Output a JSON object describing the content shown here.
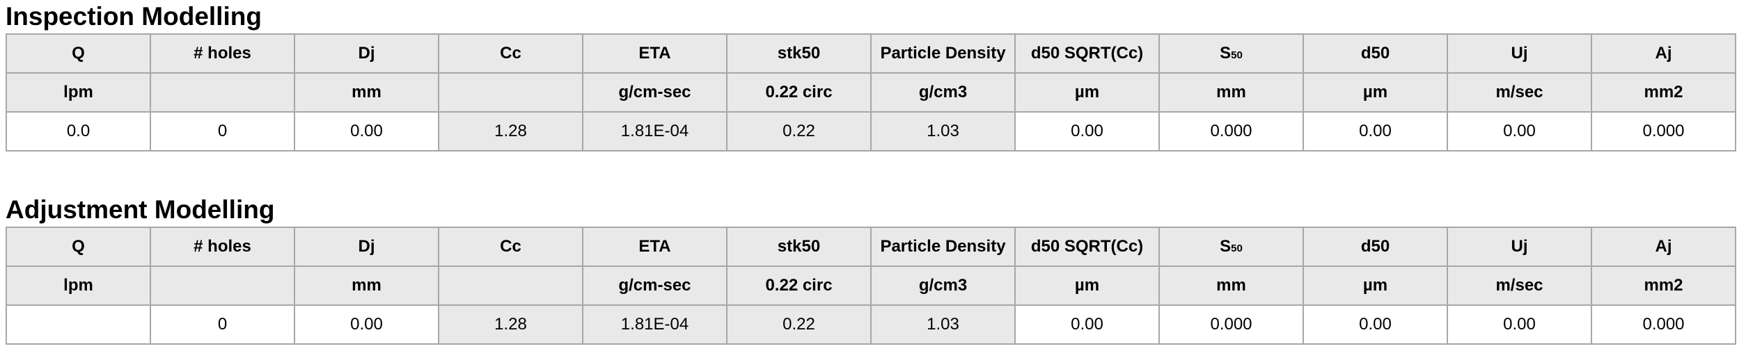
{
  "colors": {
    "header_cell_bg": "#e9e9e9",
    "shaded_value_cell_bg": "#e9e9e9",
    "white_cell_bg": "#ffffff",
    "grid_border": "#a7a7a7",
    "text": "#000000",
    "page_bg": "#ffffff"
  },
  "tables": [
    {
      "title": "Inspection Modelling",
      "columns": [
        {
          "label": "Q",
          "unit": "lpm"
        },
        {
          "label": "# holes",
          "unit": ""
        },
        {
          "label": "Dj",
          "unit": "mm"
        },
        {
          "label": "Cc",
          "unit": ""
        },
        {
          "label": "ETA",
          "unit": "g/cm-sec"
        },
        {
          "label": "stk50",
          "unit": "0.22 circ"
        },
        {
          "label": "Particle Density",
          "unit": "g/cm3"
        },
        {
          "label": "d50 SQRT(Cc)",
          "unit": "µm"
        },
        {
          "label": "S",
          "sub": "50",
          "unit": "mm"
        },
        {
          "label": "d50",
          "unit": "µm"
        },
        {
          "label": "Uj",
          "unit": "m/sec"
        },
        {
          "label": "Aj",
          "unit": "mm2"
        }
      ],
      "values": [
        "0.0",
        "0",
        "0.00",
        "1.28",
        "1.81E-04",
        "0.22",
        "1.03",
        "0.00",
        "0.000",
        "0.00",
        "0.00",
        "0.000"
      ],
      "shaded_value_columns": [
        3,
        4,
        5,
        6
      ]
    },
    {
      "title": "Adjustment Modelling",
      "columns": [
        {
          "label": "Q",
          "unit": "lpm"
        },
        {
          "label": "# holes",
          "unit": ""
        },
        {
          "label": "Dj",
          "unit": "mm"
        },
        {
          "label": "Cc",
          "unit": ""
        },
        {
          "label": "ETA",
          "unit": "g/cm-sec"
        },
        {
          "label": "stk50",
          "unit": "0.22 circ"
        },
        {
          "label": "Particle Density",
          "unit": "g/cm3"
        },
        {
          "label": "d50 SQRT(Cc)",
          "unit": "µm"
        },
        {
          "label": "S",
          "sub": "50",
          "unit": "mm"
        },
        {
          "label": "d50",
          "unit": "µm"
        },
        {
          "label": "Uj",
          "unit": "m/sec"
        },
        {
          "label": "Aj",
          "unit": "mm2"
        }
      ],
      "values": [
        "",
        "0",
        "0.00",
        "1.28",
        "1.81E-04",
        "0.22",
        "1.03",
        "0.00",
        "0.000",
        "0.00",
        "0.00",
        "0.000"
      ],
      "shaded_value_columns": [
        3,
        4,
        5,
        6
      ]
    }
  ]
}
